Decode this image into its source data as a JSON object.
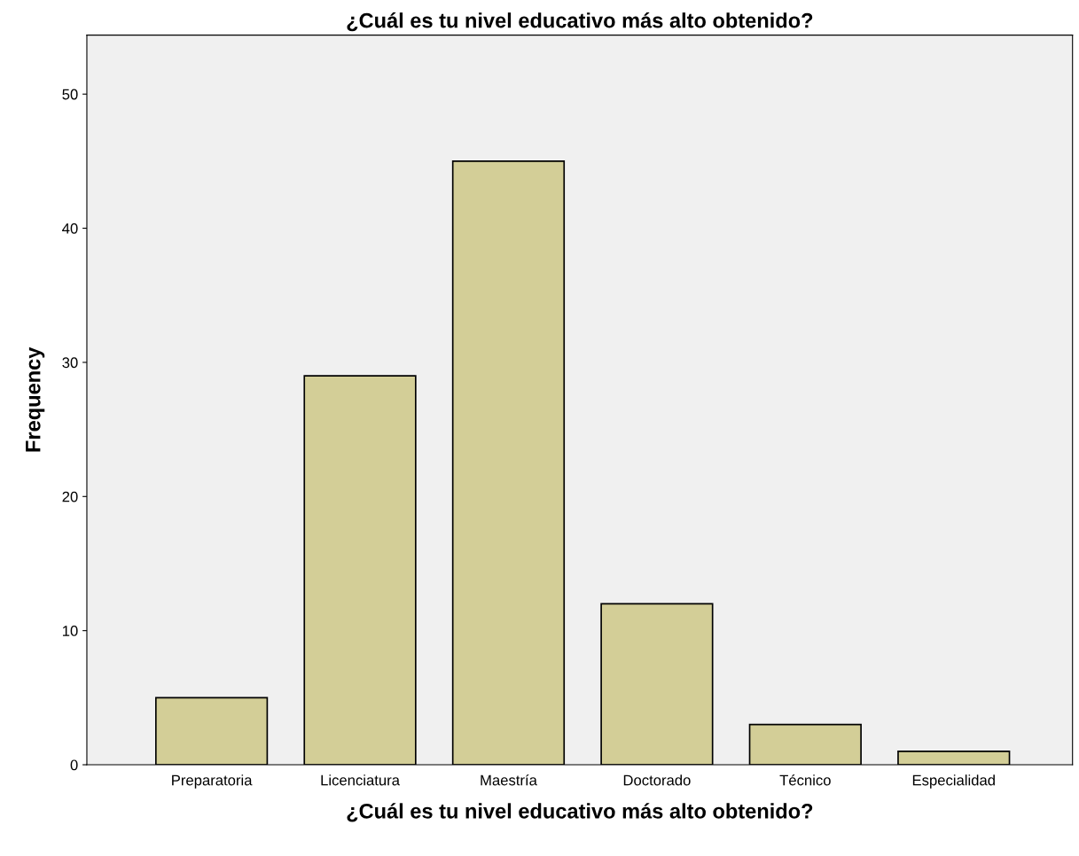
{
  "chart_data": {
    "type": "bar",
    "title": "¿Cuál es tu nivel educativo más alto obtenido?",
    "xlabel": "¿Cuál es tu nivel educativo más alto obtenido?",
    "ylabel": "Frequency",
    "categories": [
      "Preparatoria",
      "Licenciatura",
      "Maestría",
      "Doctorado",
      "Técnico",
      "Especialidad"
    ],
    "values": [
      5,
      29,
      45,
      12,
      3,
      1
    ],
    "color": "#d3ce97",
    "ylim": [
      0,
      54.4
    ],
    "yticks": [
      0,
      10,
      20,
      30,
      40,
      50
    ],
    "grid": false
  }
}
